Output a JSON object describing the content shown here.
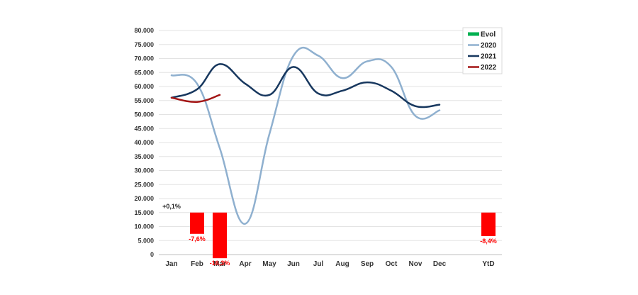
{
  "chart_data": {
    "type": "line",
    "categories": [
      "Jan",
      "Feb",
      "Mar",
      "Apr",
      "May",
      "Jun",
      "Jul",
      "Aug",
      "Sep",
      "Oct",
      "Nov",
      "Dec",
      "YtD"
    ],
    "y_ticks": [
      "0",
      "5.000",
      "10.000",
      "15.000",
      "20.000",
      "25.000",
      "30.000",
      "35.000",
      "40.000",
      "45.000",
      "50.000",
      "55.000",
      "60.000",
      "65.000",
      "70.000",
      "75.000",
      "80.000"
    ],
    "ylim": [
      0,
      80000
    ],
    "grid": true,
    "legend_placement": "top-right",
    "series": [
      {
        "name": "2020",
        "color": "#8fb0cf",
        "values": [
          64000,
          61000,
          38000,
          11000,
          43000,
          71000,
          71000,
          63000,
          69000,
          67000,
          49500,
          51500,
          null
        ]
      },
      {
        "name": "2021",
        "color": "#17375e",
        "values": [
          56000,
          59000,
          68000,
          61000,
          57000,
          67000,
          57500,
          58500,
          61500,
          58500,
          53000,
          53500,
          null
        ]
      },
      {
        "name": "2022",
        "color": "#a31515",
        "values": [
          56000,
          54500,
          57000,
          null,
          null,
          null,
          null,
          null,
          null,
          null,
          null,
          null,
          null
        ]
      }
    ],
    "evol": {
      "name": "Evol",
      "legend_color": "#00b050",
      "baseline": 15000,
      "scale_per_pct": 1000,
      "items": [
        {
          "category": "Jan",
          "pct": 0.1,
          "label": "+0,1%",
          "color": "#222222"
        },
        {
          "category": "Feb",
          "pct": -7.6,
          "label": "-7,6%",
          "color": "#ff0000"
        },
        {
          "category": "Mar",
          "pct": -16.3,
          "label": "-16,3%",
          "color": "#ff0000"
        },
        {
          "category": "YtD",
          "pct": -8.4,
          "label": "-8,4%",
          "color": "#ff0000"
        }
      ]
    }
  }
}
